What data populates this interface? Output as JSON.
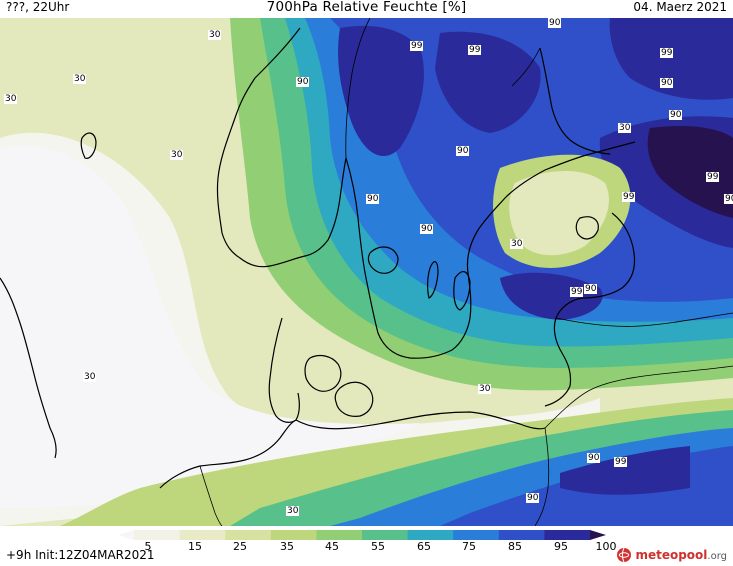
{
  "header": {
    "left": "???, 22Uhr",
    "title": "700hPa Relative Feuchte [%]",
    "right": "04. Maerz 2021"
  },
  "labels": [
    "30",
    "30",
    "30",
    "30",
    "30",
    "30",
    "30",
    "30",
    "30",
    "90",
    "90",
    "90",
    "90",
    "90",
    "90",
    "90",
    "90",
    "90",
    "90",
    "90",
    "99",
    "99",
    "99",
    "99",
    "99",
    "99",
    "99"
  ],
  "legend": {
    "ticks": [
      "5",
      "15",
      "25",
      "35",
      "45",
      "55",
      "65",
      "75",
      "85",
      "95",
      "100"
    ],
    "colors": [
      "#f6f6f8",
      "#f2f2e6",
      "#e8ebc6",
      "#d8e2a0",
      "#bfd77c",
      "#92cf74",
      "#58c08a",
      "#2fa9c2",
      "#2a7dd8",
      "#2f50c8",
      "#2a2a9a",
      "#25124f"
    ]
  },
  "footer": {
    "init": "+9h  Init:12Z04MAR2021",
    "brand": "meteopool",
    "brand_suffix": ".org"
  }
}
